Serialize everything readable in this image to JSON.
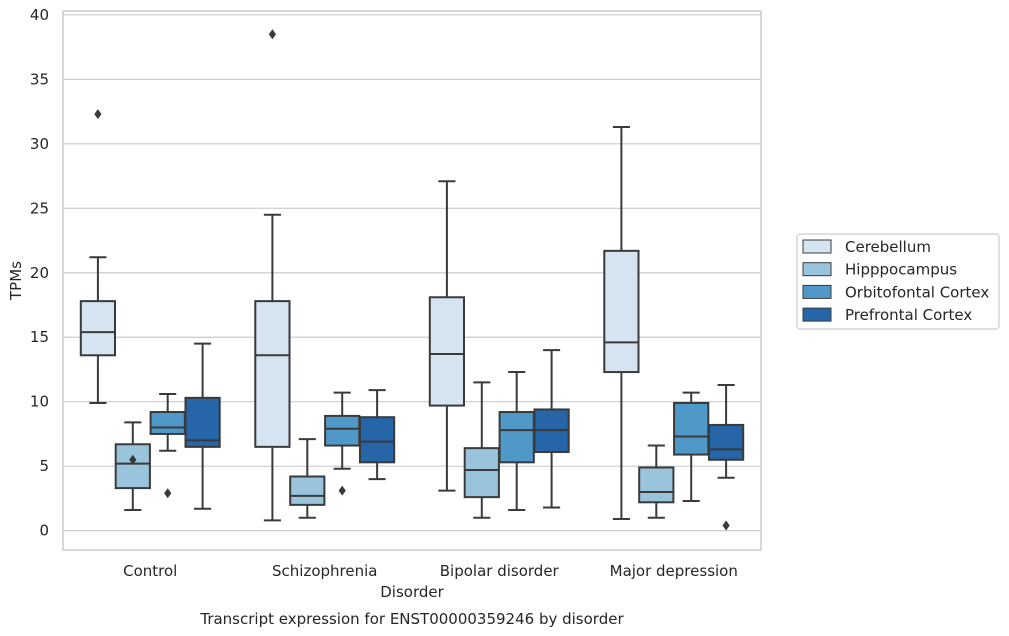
{
  "chart_data": {
    "type": "box",
    "title": "",
    "caption": "Transcript expression for ENST00000359246 by disorder",
    "xlabel": "Disorder",
    "ylabel": "TPMs",
    "ylim": [
      -1.5,
      40.3
    ],
    "yticks": [
      0,
      5,
      10,
      15,
      20,
      25,
      30,
      35,
      40
    ],
    "grid": "horizontal",
    "legend_position": "right",
    "categories": [
      "Control",
      "Schizophrenia",
      "Bipolar disorder",
      "Major depression"
    ],
    "series": [
      {
        "name": "Cerebellum",
        "color": "#d6e4f2",
        "boxes": [
          {
            "whislo": 9.9,
            "q1": 13.6,
            "med": 15.4,
            "q3": 17.8,
            "whishi": 21.2,
            "fliers": [
              32.3
            ]
          },
          {
            "whislo": 0.8,
            "q1": 6.5,
            "med": 13.6,
            "q3": 17.8,
            "whishi": 24.5,
            "fliers": [
              38.5
            ]
          },
          {
            "whislo": 3.1,
            "q1": 9.7,
            "med": 13.7,
            "q3": 18.1,
            "whishi": 27.1,
            "fliers": []
          },
          {
            "whislo": 0.9,
            "q1": 12.3,
            "med": 14.6,
            "q3": 21.7,
            "whishi": 31.3,
            "fliers": []
          }
        ]
      },
      {
        "name": "Hipppocampus",
        "color": "#9ac3dc",
        "boxes": [
          {
            "whislo": 1.6,
            "q1": 3.3,
            "med": 5.2,
            "q3": 6.7,
            "whishi": 8.4,
            "fliers": [
              5.5
            ]
          },
          {
            "whislo": 1.0,
            "q1": 2.0,
            "med": 2.7,
            "q3": 4.2,
            "whishi": 7.1,
            "fliers": []
          },
          {
            "whislo": 1.0,
            "q1": 2.6,
            "med": 4.7,
            "q3": 6.4,
            "whishi": 11.5,
            "fliers": []
          },
          {
            "whislo": 1.0,
            "q1": 2.2,
            "med": 3.0,
            "q3": 4.9,
            "whishi": 6.6,
            "fliers": []
          }
        ]
      },
      {
        "name": "Orbitofontal Cortex",
        "color": "#5098c8",
        "boxes": [
          {
            "whislo": 6.2,
            "q1": 7.5,
            "med": 8.0,
            "q3": 9.2,
            "whishi": 10.6,
            "fliers": [
              2.9
            ]
          },
          {
            "whislo": 4.8,
            "q1": 6.6,
            "med": 7.9,
            "q3": 8.9,
            "whishi": 10.7,
            "fliers": [
              3.1
            ]
          },
          {
            "whislo": 1.6,
            "q1": 5.3,
            "med": 7.8,
            "q3": 9.2,
            "whishi": 12.3,
            "fliers": []
          },
          {
            "whislo": 2.3,
            "q1": 5.9,
            "med": 7.3,
            "q3": 9.9,
            "whishi": 10.7,
            "fliers": []
          }
        ]
      },
      {
        "name": "Prefrontal Cortex",
        "color": "#2565a8",
        "boxes": [
          {
            "whislo": 1.7,
            "q1": 6.5,
            "med": 7.0,
            "q3": 10.3,
            "whishi": 14.5,
            "fliers": []
          },
          {
            "whislo": 4.0,
            "q1": 5.3,
            "med": 6.9,
            "q3": 8.8,
            "whishi": 10.9,
            "fliers": []
          },
          {
            "whislo": 1.8,
            "q1": 6.1,
            "med": 7.8,
            "q3": 9.4,
            "whishi": 14.0,
            "fliers": []
          },
          {
            "whislo": 4.1,
            "q1": 5.5,
            "med": 6.3,
            "q3": 8.2,
            "whishi": 11.3,
            "fliers": [
              0.4
            ]
          }
        ]
      }
    ]
  }
}
